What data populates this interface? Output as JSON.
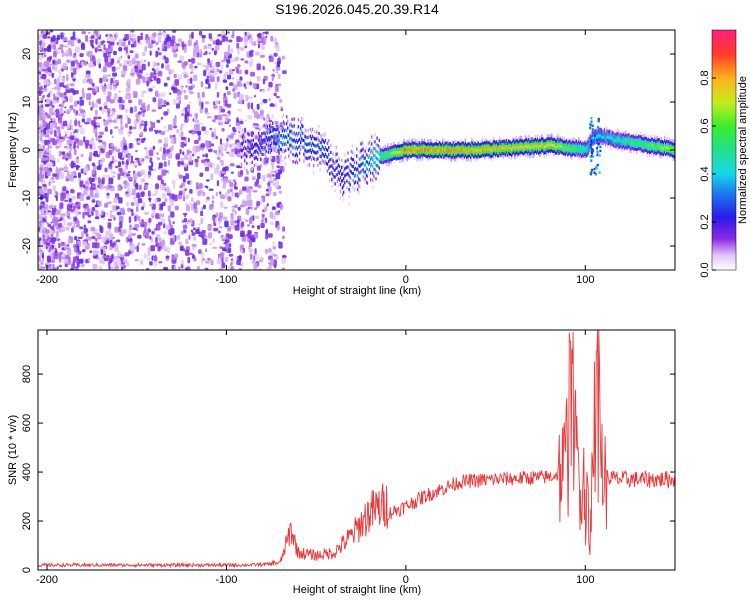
{
  "title": "S196.2026.045.20.39.R14",
  "colors": {
    "snr_line": "#e8393a",
    "axis": "#000000",
    "background": "#ffffff"
  },
  "chart_data": [
    {
      "type": "heatmap",
      "xlabel": "Height of straight line (km)",
      "ylabel": "Frequency (Hz)",
      "xlim": [
        -205,
        150
      ],
      "ylim": [
        -25,
        25
      ],
      "x_ticks": [
        -200,
        -100,
        0,
        100
      ],
      "y_ticks": [
        -20,
        -10,
        0,
        10,
        20
      ],
      "colorbar": {
        "label": "Normalized spectral amplitude",
        "range": [
          0.0,
          1.0
        ],
        "ticks": [
          "0.0",
          "0.2",
          "0.4",
          "0.6",
          "0.8"
        ],
        "colormap": "rainbow"
      },
      "ridge": {
        "description_x": [
          -90,
          -70,
          -50,
          -35,
          -20,
          0,
          40,
          80,
          100,
          105,
          150
        ],
        "center_freq": [
          0,
          3,
          1,
          -6,
          -2,
          0,
          0,
          1,
          0,
          3,
          0
        ],
        "amplitude": [
          0.2,
          0.35,
          0.3,
          0.25,
          0.4,
          0.85,
          0.8,
          0.75,
          0.5,
          0.4,
          0.7
        ]
      },
      "noise_region": [
        -205,
        -80
      ]
    },
    {
      "type": "line",
      "xlabel": "Height of straight line (km)",
      "ylabel": "SNR (10 * v/v)",
      "xlim": [
        -205,
        150
      ],
      "ylim": [
        0,
        980
      ],
      "x_ticks": [
        -200,
        -100,
        0,
        100
      ],
      "y_ticks": [
        0,
        200,
        400,
        600,
        800
      ],
      "series": [
        {
          "name": "SNR",
          "envelope_x": [
            -205,
            -90,
            -70,
            -64,
            -60,
            -50,
            -40,
            -30,
            -20,
            -10,
            0,
            10,
            20,
            30,
            50,
            80,
            88,
            92,
            96,
            100,
            104,
            107,
            110,
            120,
            150
          ],
          "envelope_y": [
            20,
            20,
            25,
            140,
            60,
            50,
            60,
            120,
            200,
            230,
            260,
            300,
            330,
            360,
            370,
            380,
            400,
            600,
            420,
            350,
            300,
            700,
            380,
            370,
            370
          ]
        }
      ]
    }
  ]
}
